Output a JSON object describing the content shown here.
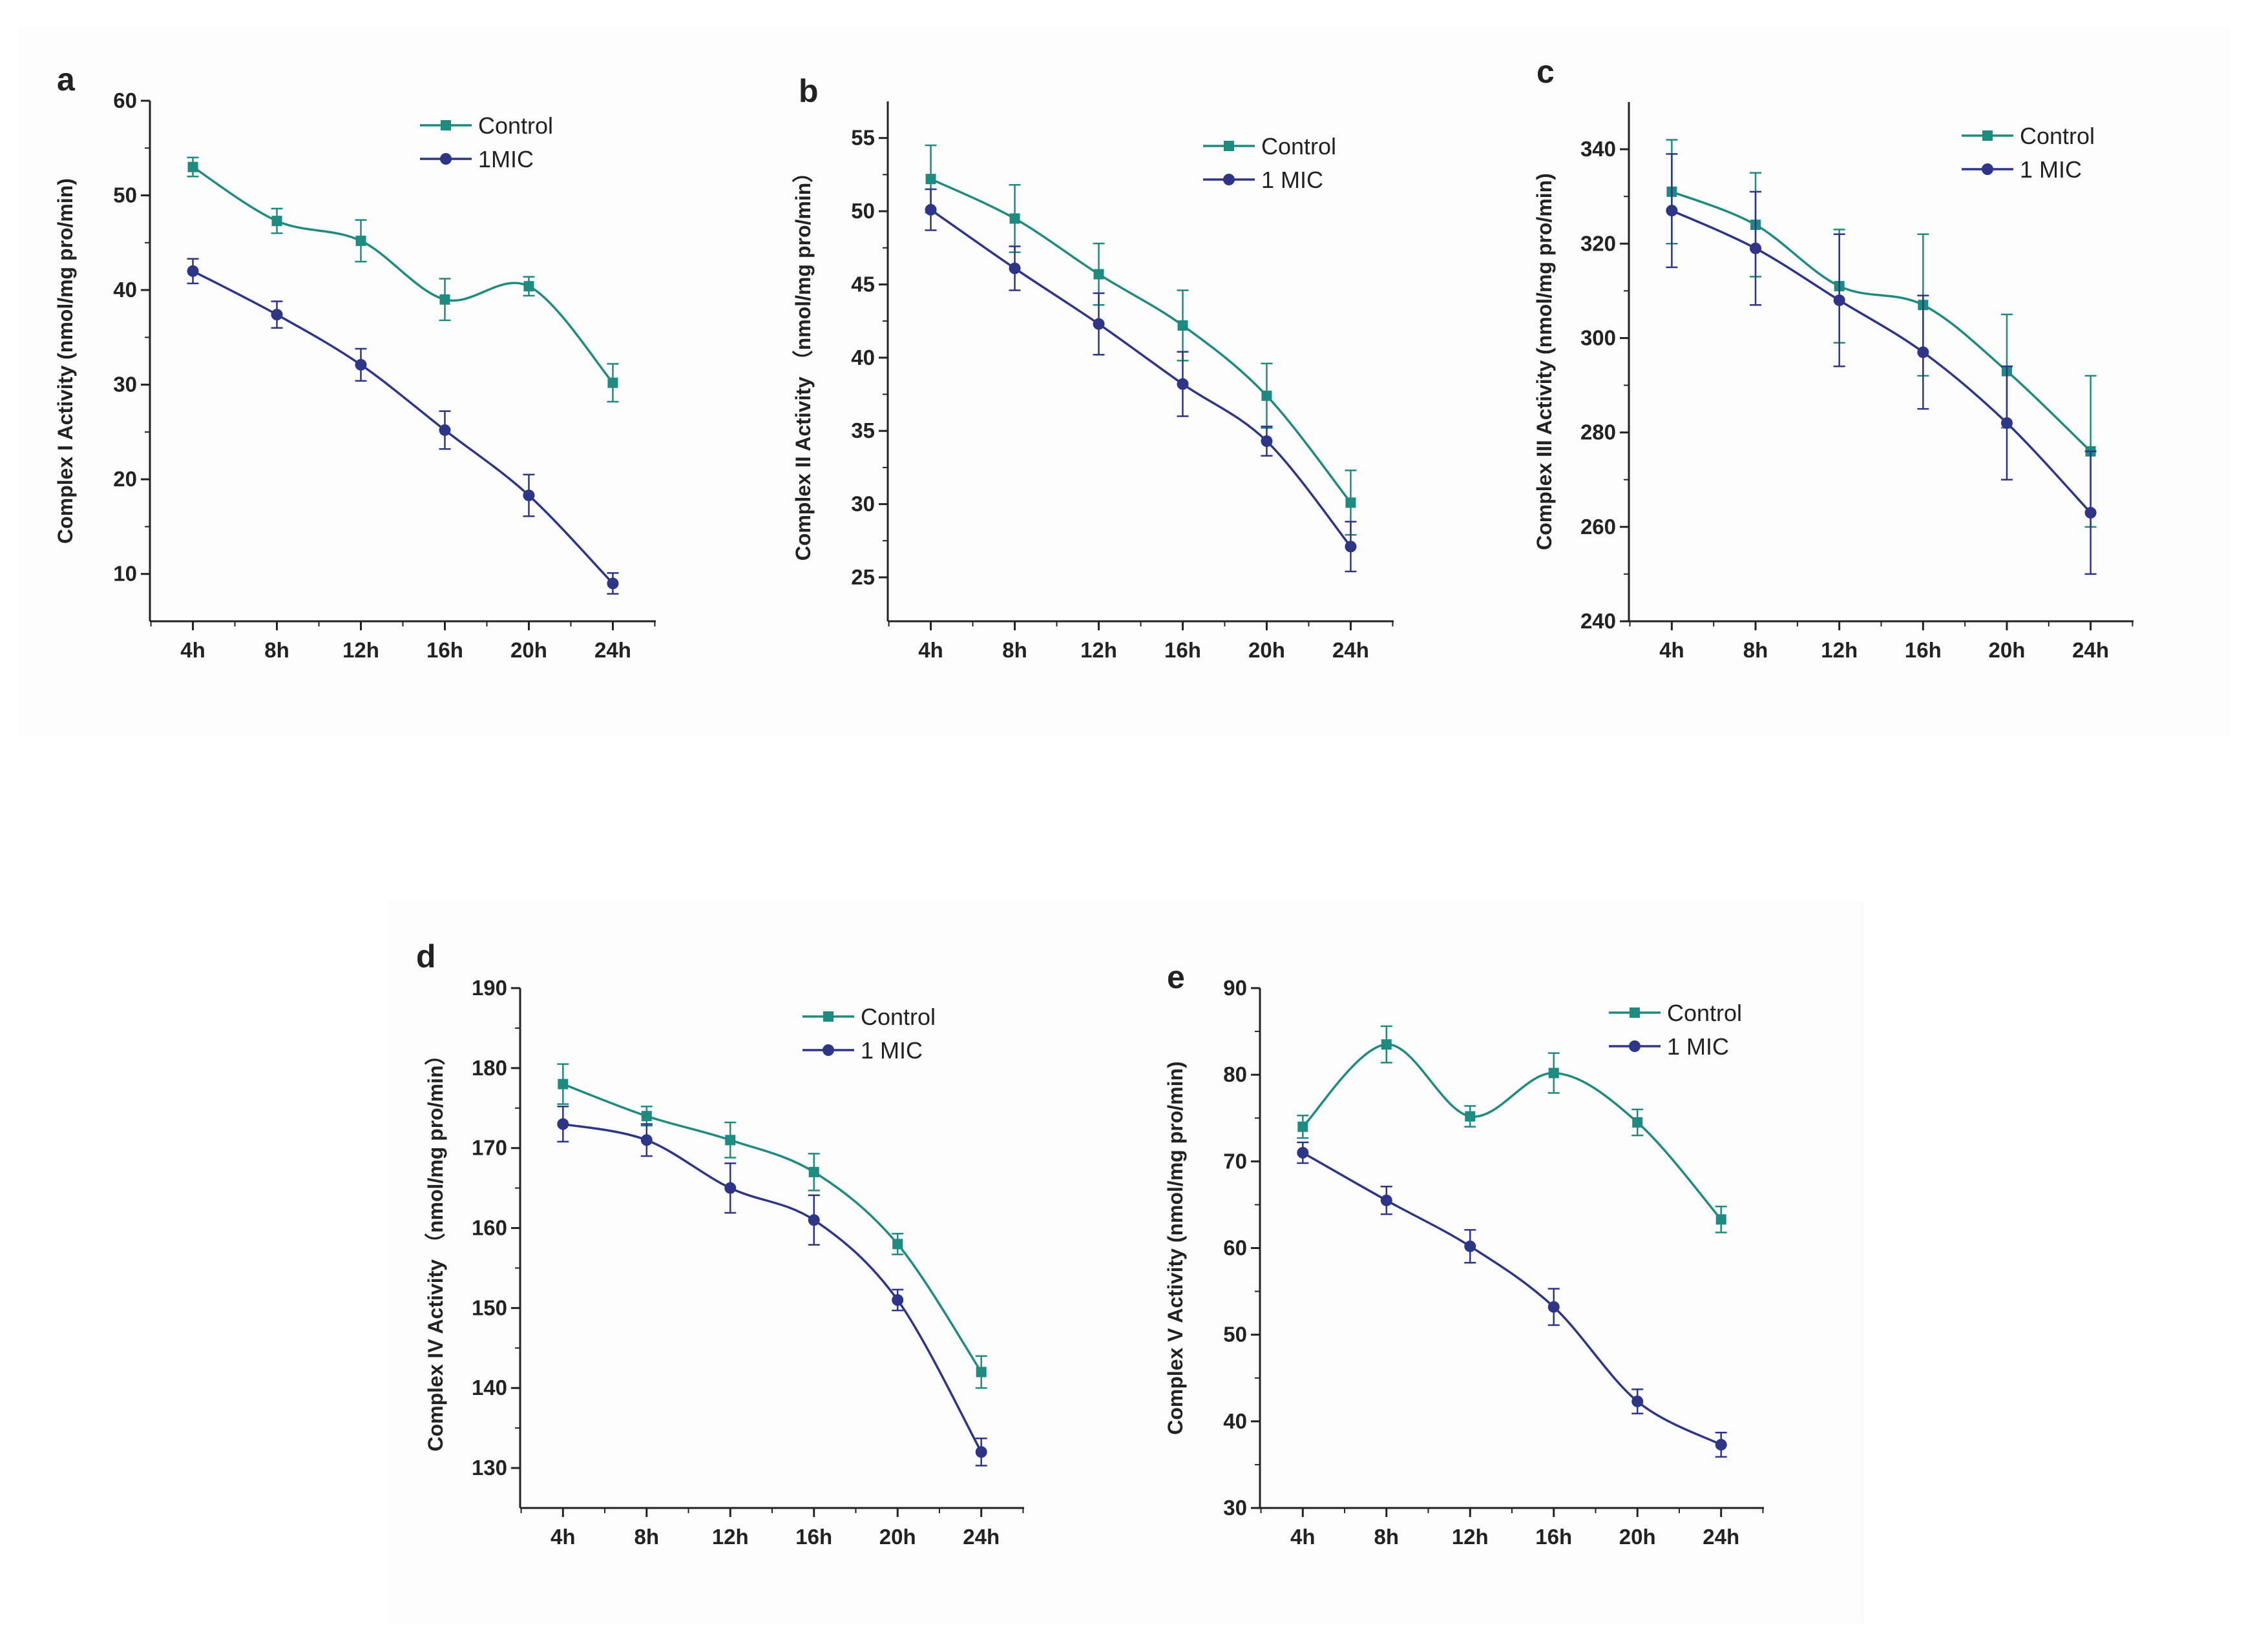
{
  "figure": {
    "colors": {
      "control": "#1f8a80",
      "mic": "#2e3586",
      "axis": "#222222",
      "panel_bg": "#fcfcfc"
    }
  },
  "chart_data": [
    {
      "type": "line",
      "panel": "a",
      "ylabel": "Complex I Activity (nmol/mg pro/min)",
      "xlabel": "",
      "categories": [
        "4h",
        "8h",
        "12h",
        "16h",
        "20h",
        "24h"
      ],
      "ylim": [
        5,
        60
      ],
      "yticks": [
        10,
        20,
        30,
        40,
        50,
        60
      ],
      "legend_position": "top-right",
      "series": [
        {
          "name": "Control",
          "marker": "square",
          "values": [
            53.0,
            47.3,
            45.2,
            39.0,
            40.4,
            30.2
          ],
          "errors": [
            1.0,
            1.3,
            2.2,
            2.2,
            1.0,
            2.0
          ]
        },
        {
          "name": "1MIC",
          "marker": "circle",
          "values": [
            42.0,
            37.4,
            32.1,
            25.2,
            18.3,
            9.0
          ],
          "errors": [
            1.3,
            1.4,
            1.7,
            2.0,
            2.2,
            1.1
          ]
        }
      ]
    },
    {
      "type": "line",
      "panel": "b",
      "ylabel": "Complex II Activity （nmol/mg pro/min）",
      "xlabel": "",
      "categories": [
        "4h",
        "8h",
        "12h",
        "16h",
        "20h",
        "24h"
      ],
      "ylim": [
        22,
        57.5
      ],
      "yticks": [
        25,
        30,
        35,
        40,
        45,
        50,
        55
      ],
      "legend_position": "top-right",
      "series": [
        {
          "name": "Control",
          "marker": "square",
          "values": [
            52.2,
            49.5,
            45.7,
            42.2,
            37.4,
            30.1
          ],
          "errors": [
            2.3,
            2.3,
            2.1,
            2.4,
            2.2,
            2.2
          ]
        },
        {
          "name": "1 MIC",
          "marker": "circle",
          "values": [
            50.1,
            46.1,
            42.3,
            38.2,
            34.3,
            27.1
          ],
          "errors": [
            1.4,
            1.5,
            2.1,
            2.2,
            1.0,
            1.7
          ]
        }
      ]
    },
    {
      "type": "line",
      "panel": "c",
      "ylabel": "Complex III  Activity (nmol/mg pro/min)",
      "xlabel": "",
      "categories": [
        "4h",
        "8h",
        "12h",
        "16h",
        "20h",
        "24h"
      ],
      "ylim": [
        240,
        350
      ],
      "yticks": [
        240,
        260,
        280,
        300,
        320,
        340
      ],
      "legend_position": "top-right",
      "series": [
        {
          "name": "Control",
          "marker": "square",
          "values": [
            331,
            324,
            311,
            307,
            293,
            276
          ],
          "errors": [
            11,
            11,
            12,
            15,
            12,
            16
          ]
        },
        {
          "name": "1 MIC",
          "marker": "circle",
          "values": [
            327,
            319,
            308,
            297,
            282,
            263
          ],
          "errors": [
            12,
            12,
            14,
            12,
            12,
            13
          ]
        }
      ]
    },
    {
      "type": "line",
      "panel": "d",
      "ylabel": "Complex IV Activity （nmol/mg pro/min）",
      "xlabel": "",
      "categories": [
        "4h",
        "8h",
        "12h",
        "16h",
        "20h",
        "24h"
      ],
      "ylim": [
        125,
        190
      ],
      "yticks": [
        130,
        140,
        150,
        160,
        170,
        180,
        190
      ],
      "legend_position": "top-right",
      "series": [
        {
          "name": "Control",
          "marker": "square",
          "values": [
            178,
            174,
            171,
            167,
            158,
            142
          ],
          "errors": [
            2.5,
            1.2,
            2.2,
            2.3,
            1.3,
            2.0
          ]
        },
        {
          "name": "1 MIC",
          "marker": "circle",
          "values": [
            173,
            171,
            165,
            161,
            151,
            132
          ],
          "errors": [
            2.2,
            2.0,
            3.1,
            3.1,
            1.3,
            1.7
          ]
        }
      ]
    },
    {
      "type": "line",
      "panel": "e",
      "ylabel": "Complex V Activity (nmol/mg pro/min)",
      "xlabel": "",
      "categories": [
        "4h",
        "8h",
        "12h",
        "16h",
        "20h",
        "24h"
      ],
      "ylim": [
        30,
        90
      ],
      "yticks": [
        30,
        40,
        50,
        60,
        70,
        80,
        90
      ],
      "legend_position": "top-right",
      "series": [
        {
          "name": "Control",
          "marker": "square",
          "values": [
            74.0,
            83.5,
            75.2,
            80.2,
            74.5,
            63.3
          ],
          "errors": [
            1.3,
            2.1,
            1.2,
            2.3,
            1.5,
            1.5
          ]
        },
        {
          "name": "1 MIC",
          "marker": "circle",
          "values": [
            71.0,
            65.5,
            60.2,
            53.2,
            42.3,
            37.3
          ],
          "errors": [
            1.2,
            1.6,
            1.9,
            2.1,
            1.4,
            1.4
          ]
        }
      ]
    }
  ]
}
